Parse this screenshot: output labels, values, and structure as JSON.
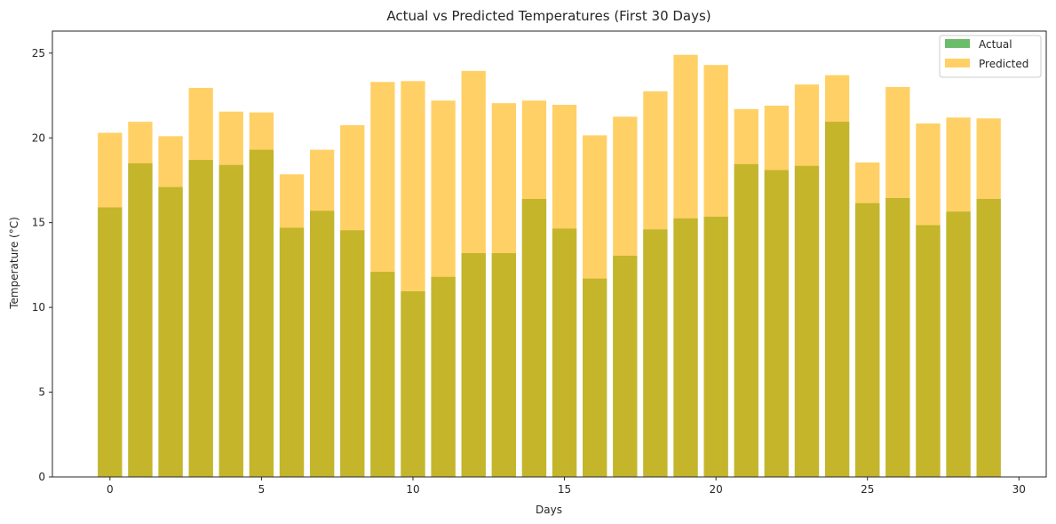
{
  "chart_data": {
    "type": "bar",
    "title": "Actual vs Predicted Temperatures (First 30 Days)",
    "xlabel": "Days",
    "ylabel": "Temperature (°C)",
    "x": [
      0,
      1,
      2,
      3,
      4,
      5,
      6,
      7,
      8,
      9,
      10,
      11,
      12,
      13,
      14,
      15,
      16,
      17,
      18,
      19,
      20,
      21,
      22,
      23,
      24,
      25,
      26,
      27,
      28,
      29
    ],
    "xlim": [
      -1.9,
      30.9
    ],
    "ylim": [
      0,
      26.3
    ],
    "xticks": [
      0,
      5,
      10,
      15,
      20,
      25,
      30
    ],
    "yticks": [
      0,
      5,
      10,
      15,
      20,
      25
    ],
    "grid": false,
    "legend_position": "top-right",
    "series": [
      {
        "name": "Actual",
        "color": "#2ca02c",
        "opacity": 0.7,
        "values": [
          15.9,
          18.5,
          17.1,
          18.7,
          18.4,
          19.3,
          14.7,
          15.7,
          14.55,
          12.1,
          10.95,
          11.8,
          13.2,
          13.2,
          16.4,
          14.65,
          11.7,
          13.05,
          14.6,
          15.25,
          15.35,
          18.45,
          18.1,
          18.35,
          20.95,
          16.15,
          16.45,
          14.85,
          15.65,
          16.4
        ]
      },
      {
        "name": "Predicted",
        "color": "#ffb000",
        "opacity": 0.6,
        "values": [
          20.3,
          20.95,
          20.1,
          22.95,
          21.55,
          21.5,
          17.85,
          19.3,
          20.75,
          23.3,
          23.35,
          22.2,
          23.95,
          22.05,
          22.2,
          21.95,
          20.15,
          21.25,
          22.75,
          24.9,
          24.3,
          21.7,
          21.9,
          23.15,
          23.7,
          18.55,
          23.0,
          20.85,
          21.2,
          21.15
        ]
      }
    ]
  }
}
